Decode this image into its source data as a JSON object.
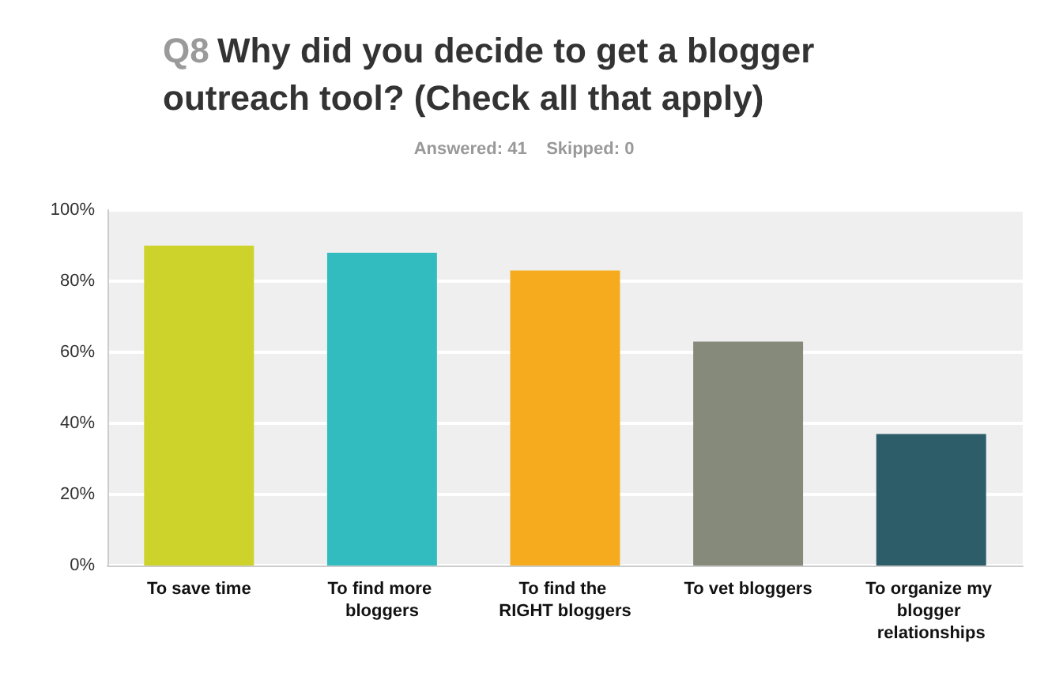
{
  "chart_data": {
    "type": "bar",
    "title": "Q8 Why did you decide to get a blogger outreach tool? (Check all that apply)",
    "subtitle": "Answered: 41    Skipped: 0",
    "categories": [
      "To save time",
      "To find more bloggers",
      "To find the RIGHT bloggers",
      "To vet bloggers",
      "To organize my blogger relationships"
    ],
    "values": [
      90,
      88,
      83,
      63,
      37
    ],
    "colors": [
      "#cdd32a",
      "#33bcbf",
      "#f6ab1f",
      "#868a7a",
      "#2c5d68"
    ],
    "ylim": [
      0,
      100
    ],
    "yticks": [
      {
        "value": 0,
        "label": "0%"
      },
      {
        "value": 20,
        "label": "20%"
      },
      {
        "value": 40,
        "label": "40%"
      },
      {
        "value": 60,
        "label": "60%"
      },
      {
        "value": 80,
        "label": "80%"
      },
      {
        "value": 100,
        "label": "100%"
      }
    ],
    "grid": true
  }
}
